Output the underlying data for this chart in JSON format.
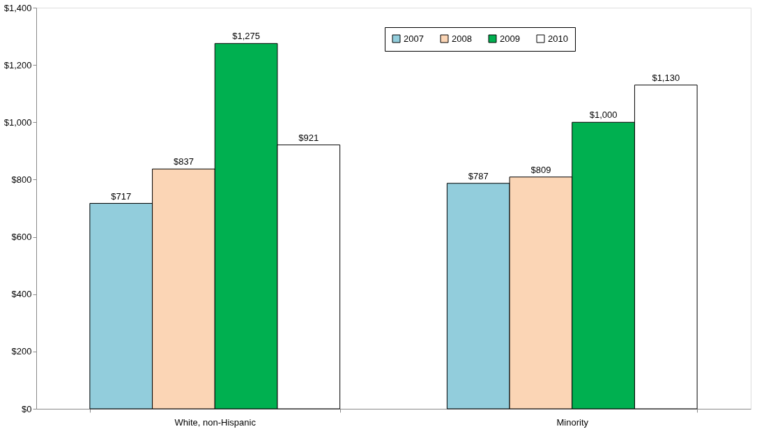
{
  "chart_data": {
    "type": "bar",
    "categories": [
      "White, non-Hispanic",
      "Minority"
    ],
    "series": [
      {
        "name": "2007",
        "color": "#92cddc",
        "values": [
          717,
          787
        ],
        "value_labels": [
          "$717",
          "$787"
        ]
      },
      {
        "name": "2008",
        "color": "#fbd5b5",
        "values": [
          837,
          809
        ],
        "value_labels": [
          "$837",
          "$809"
        ]
      },
      {
        "name": "2009",
        "color": "#00b050",
        "values": [
          1275,
          1000
        ],
        "value_labels": [
          "$1,275",
          "$1,000"
        ]
      },
      {
        "name": "2010",
        "color": "#ffffff",
        "values": [
          921,
          1130
        ],
        "value_labels": [
          "$921",
          "$1,130"
        ]
      }
    ],
    "ylim": [
      0,
      1400
    ],
    "yticks": [
      {
        "value": 0,
        "label": "$0"
      },
      {
        "value": 200,
        "label": "$200"
      },
      {
        "value": 400,
        "label": "$400"
      },
      {
        "value": 600,
        "label": "$600"
      },
      {
        "value": 800,
        "label": "$800"
      },
      {
        "value": 1000,
        "label": "$1,000"
      },
      {
        "value": 1200,
        "label": "$1,200"
      },
      {
        "value": 1400,
        "label": "$1,400"
      }
    ],
    "grid": false,
    "legend": "top right"
  }
}
